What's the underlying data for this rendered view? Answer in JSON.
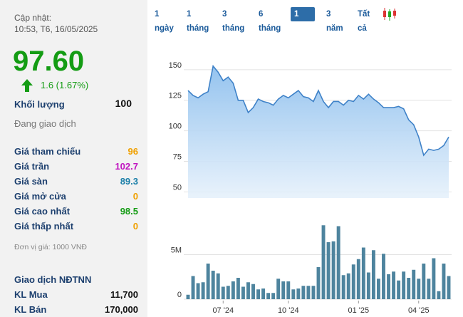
{
  "panel": {
    "update_label": "Cập nhật:",
    "update_time": "10:53, T6, 16/05/2025",
    "price": "97.60",
    "change": "1.6 (1.67%)",
    "change_color": "#149c14",
    "volume_label": "Khối lượng",
    "volume": "100",
    "status": "Đang giao dịch",
    "rows": [
      {
        "label": "Giá tham chiếu",
        "value": "96",
        "color": "#f0a000"
      },
      {
        "label": "Giá trần",
        "value": "102.7",
        "color": "#c014c0"
      },
      {
        "label": "Giá sàn",
        "value": "89.3",
        "color": "#1b7fa8"
      },
      {
        "label": "Giá mở cửa",
        "value": "0",
        "color": "#f0a000"
      },
      {
        "label": "Giá cao nhất",
        "value": "98.5",
        "color": "#149c14"
      },
      {
        "label": "Giá thấp nhất",
        "value": "0",
        "color": "#f0a000"
      }
    ],
    "unit_note": "Đơn vị giá: 1000 VNĐ",
    "foreign_title": "Giao dịch NĐTNN",
    "foreign_rows": [
      {
        "label": "KL Mua",
        "value": "11,700"
      },
      {
        "label": "KL Bán",
        "value": "170,000"
      }
    ]
  },
  "tabs": {
    "items": [
      "1 ngày",
      "1 tháng",
      "3 tháng",
      "6 tháng",
      "1 năm",
      "3 năm",
      "Tất cả"
    ],
    "active": 4
  },
  "chart_data": [
    {
      "type": "area",
      "color": "#3f82c8",
      "grid": true,
      "x": [
        0,
        1,
        2,
        3,
        4,
        5,
        6,
        7,
        8,
        9,
        10,
        11,
        12,
        13,
        14,
        15,
        16,
        17,
        18,
        19,
        20,
        21,
        22,
        23,
        24,
        25,
        26,
        27,
        28,
        29,
        30,
        31,
        32,
        33,
        34,
        35,
        36,
        37,
        38,
        39,
        40,
        41,
        42,
        43,
        44,
        45,
        46,
        47,
        48,
        49,
        50,
        51,
        52
      ],
      "values": [
        133,
        129,
        127,
        130,
        132,
        153,
        148,
        141,
        144,
        139,
        125,
        125,
        115,
        119,
        126,
        124,
        123,
        121,
        126,
        129,
        127,
        130,
        133,
        128,
        127,
        124,
        133,
        124,
        119,
        124,
        124,
        121,
        125,
        124,
        129,
        126,
        130,
        126,
        123,
        119,
        119,
        119,
        120,
        118,
        109,
        105,
        95,
        80,
        85,
        84,
        85,
        88,
        95
      ],
      "xlim": [
        0,
        52
      ],
      "ylim": [
        45,
        175
      ],
      "yticks": [
        50,
        75,
        100,
        125,
        150
      ]
    },
    {
      "type": "bar",
      "color": "#4e849e",
      "grid": true,
      "x": [
        0,
        1,
        2,
        3,
        4,
        5,
        6,
        7,
        8,
        9,
        10,
        11,
        12,
        13,
        14,
        15,
        16,
        17,
        18,
        19,
        20,
        21,
        22,
        23,
        24,
        25,
        26,
        27,
        28,
        29,
        30,
        31,
        32,
        33,
        34,
        35,
        36,
        37,
        38,
        39,
        40,
        41,
        42,
        43,
        44,
        45,
        46,
        47,
        48,
        49,
        50,
        51,
        52
      ],
      "values": [
        500000,
        2600000,
        1800000,
        1900000,
        4000000,
        3200000,
        2900000,
        1400000,
        1500000,
        2000000,
        2400000,
        1400000,
        1900000,
        1700000,
        1100000,
        1200000,
        700000,
        700000,
        2300000,
        2000000,
        2000000,
        1100000,
        1200000,
        1500000,
        1500000,
        1500000,
        3600000,
        8300000,
        6400000,
        6500000,
        8200000,
        2700000,
        2900000,
        3900000,
        4500000,
        5800000,
        3000000,
        5500000,
        2300000,
        5100000,
        2800000,
        3100000,
        2100000,
        3100000,
        2400000,
        3300000,
        2300000,
        4000000,
        2300000,
        4600000,
        900000,
        4000000,
        2600000
      ],
      "xlim": [
        0,
        52
      ],
      "ylim": [
        0,
        10000000
      ],
      "yticks": [
        0,
        {
          "value": 5000000,
          "label": "5M"
        }
      ],
      "xticks": [
        {
          "value": 7,
          "label": "07 '24"
        },
        {
          "value": 20,
          "label": "10 '24"
        },
        {
          "value": 34,
          "label": "01 '25"
        },
        {
          "value": 46,
          "label": "04 '25"
        }
      ]
    }
  ]
}
